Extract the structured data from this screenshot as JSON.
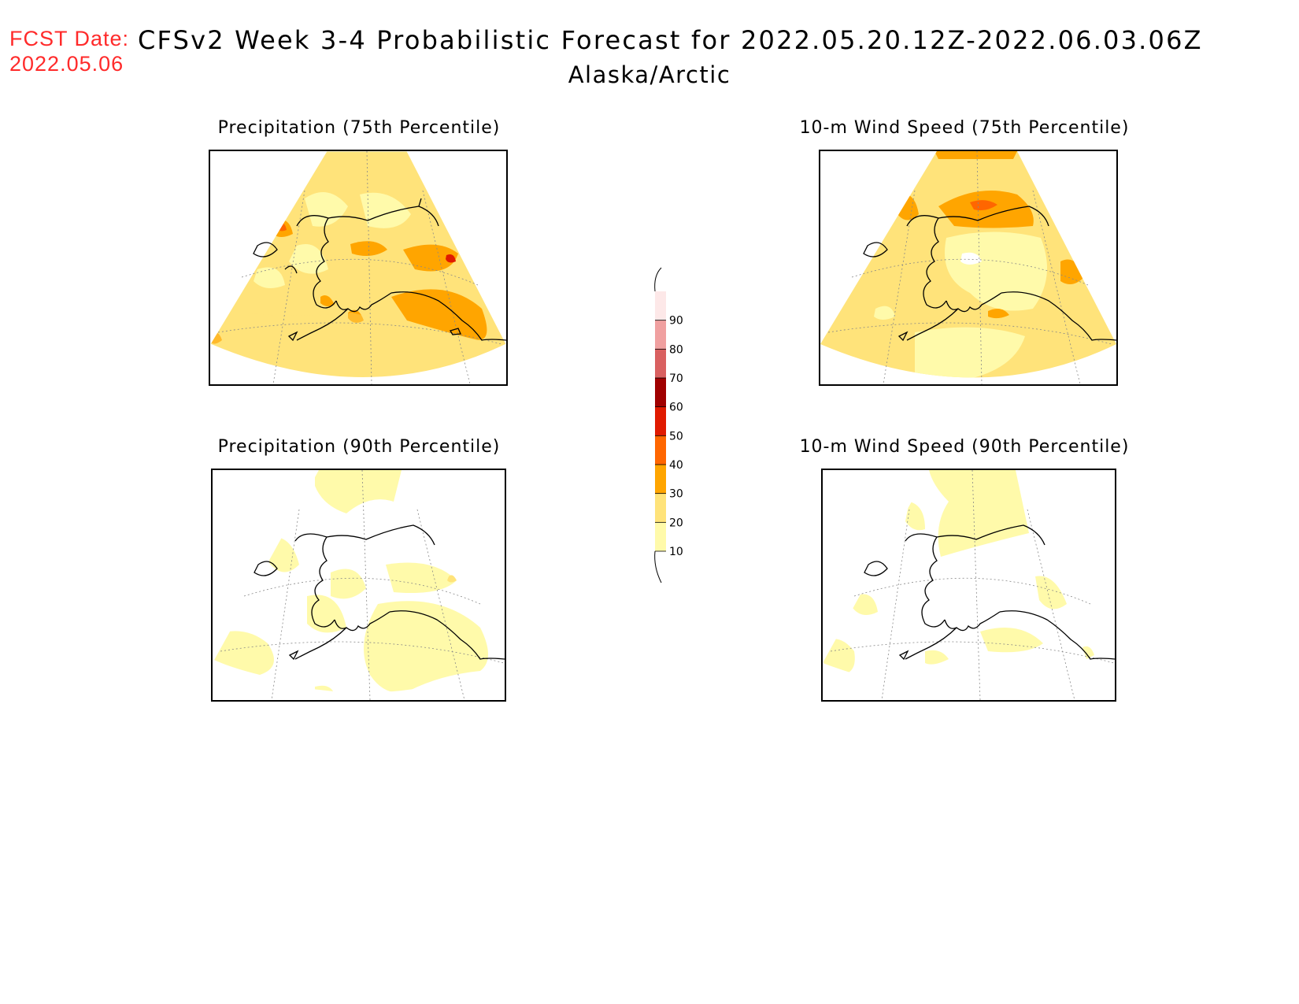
{
  "header": {
    "fcst_label": "FCST Date:",
    "fcst_date": "2022.05.06",
    "title": "CFSv2 Week 3-4 Probabilistic Forecast for 2022.05.20.12Z-2022.06.03.06Z",
    "subtitle": "Alaska/Arctic"
  },
  "panels": [
    {
      "id": "precip75",
      "title": "Precipitation (75th Percentile)",
      "variable": "Precipitation",
      "percentile": 75
    },
    {
      "id": "wind75",
      "title": "10-m Wind Speed (75th Percentile)",
      "variable": "10-m Wind Speed",
      "percentile": 75
    },
    {
      "id": "precip90",
      "title": "Precipitation (90th Percentile)",
      "variable": "Precipitation",
      "percentile": 90
    },
    {
      "id": "wind90",
      "title": "10-m Wind Speed (90th Percentile)",
      "variable": "10-m Wind Speed",
      "percentile": 90
    }
  ],
  "colorbar": {
    "labels": [
      "10",
      "20",
      "30",
      "40",
      "50",
      "60",
      "70",
      "80",
      "90"
    ],
    "colors": [
      "#fffaaa",
      "#ffe37a",
      "#ffa500",
      "#ff6600",
      "#e01a00",
      "#a00000",
      "#d96060",
      "#f0a0a0",
      "#fde8e8"
    ]
  },
  "colors": {
    "title_red": "#ff2a2a",
    "shade_10": "#fffaaa",
    "shade_20": "#ffe37a",
    "shade_30": "#ffa500",
    "shade_40": "#ff6600",
    "shade_50": "#e01a00"
  }
}
